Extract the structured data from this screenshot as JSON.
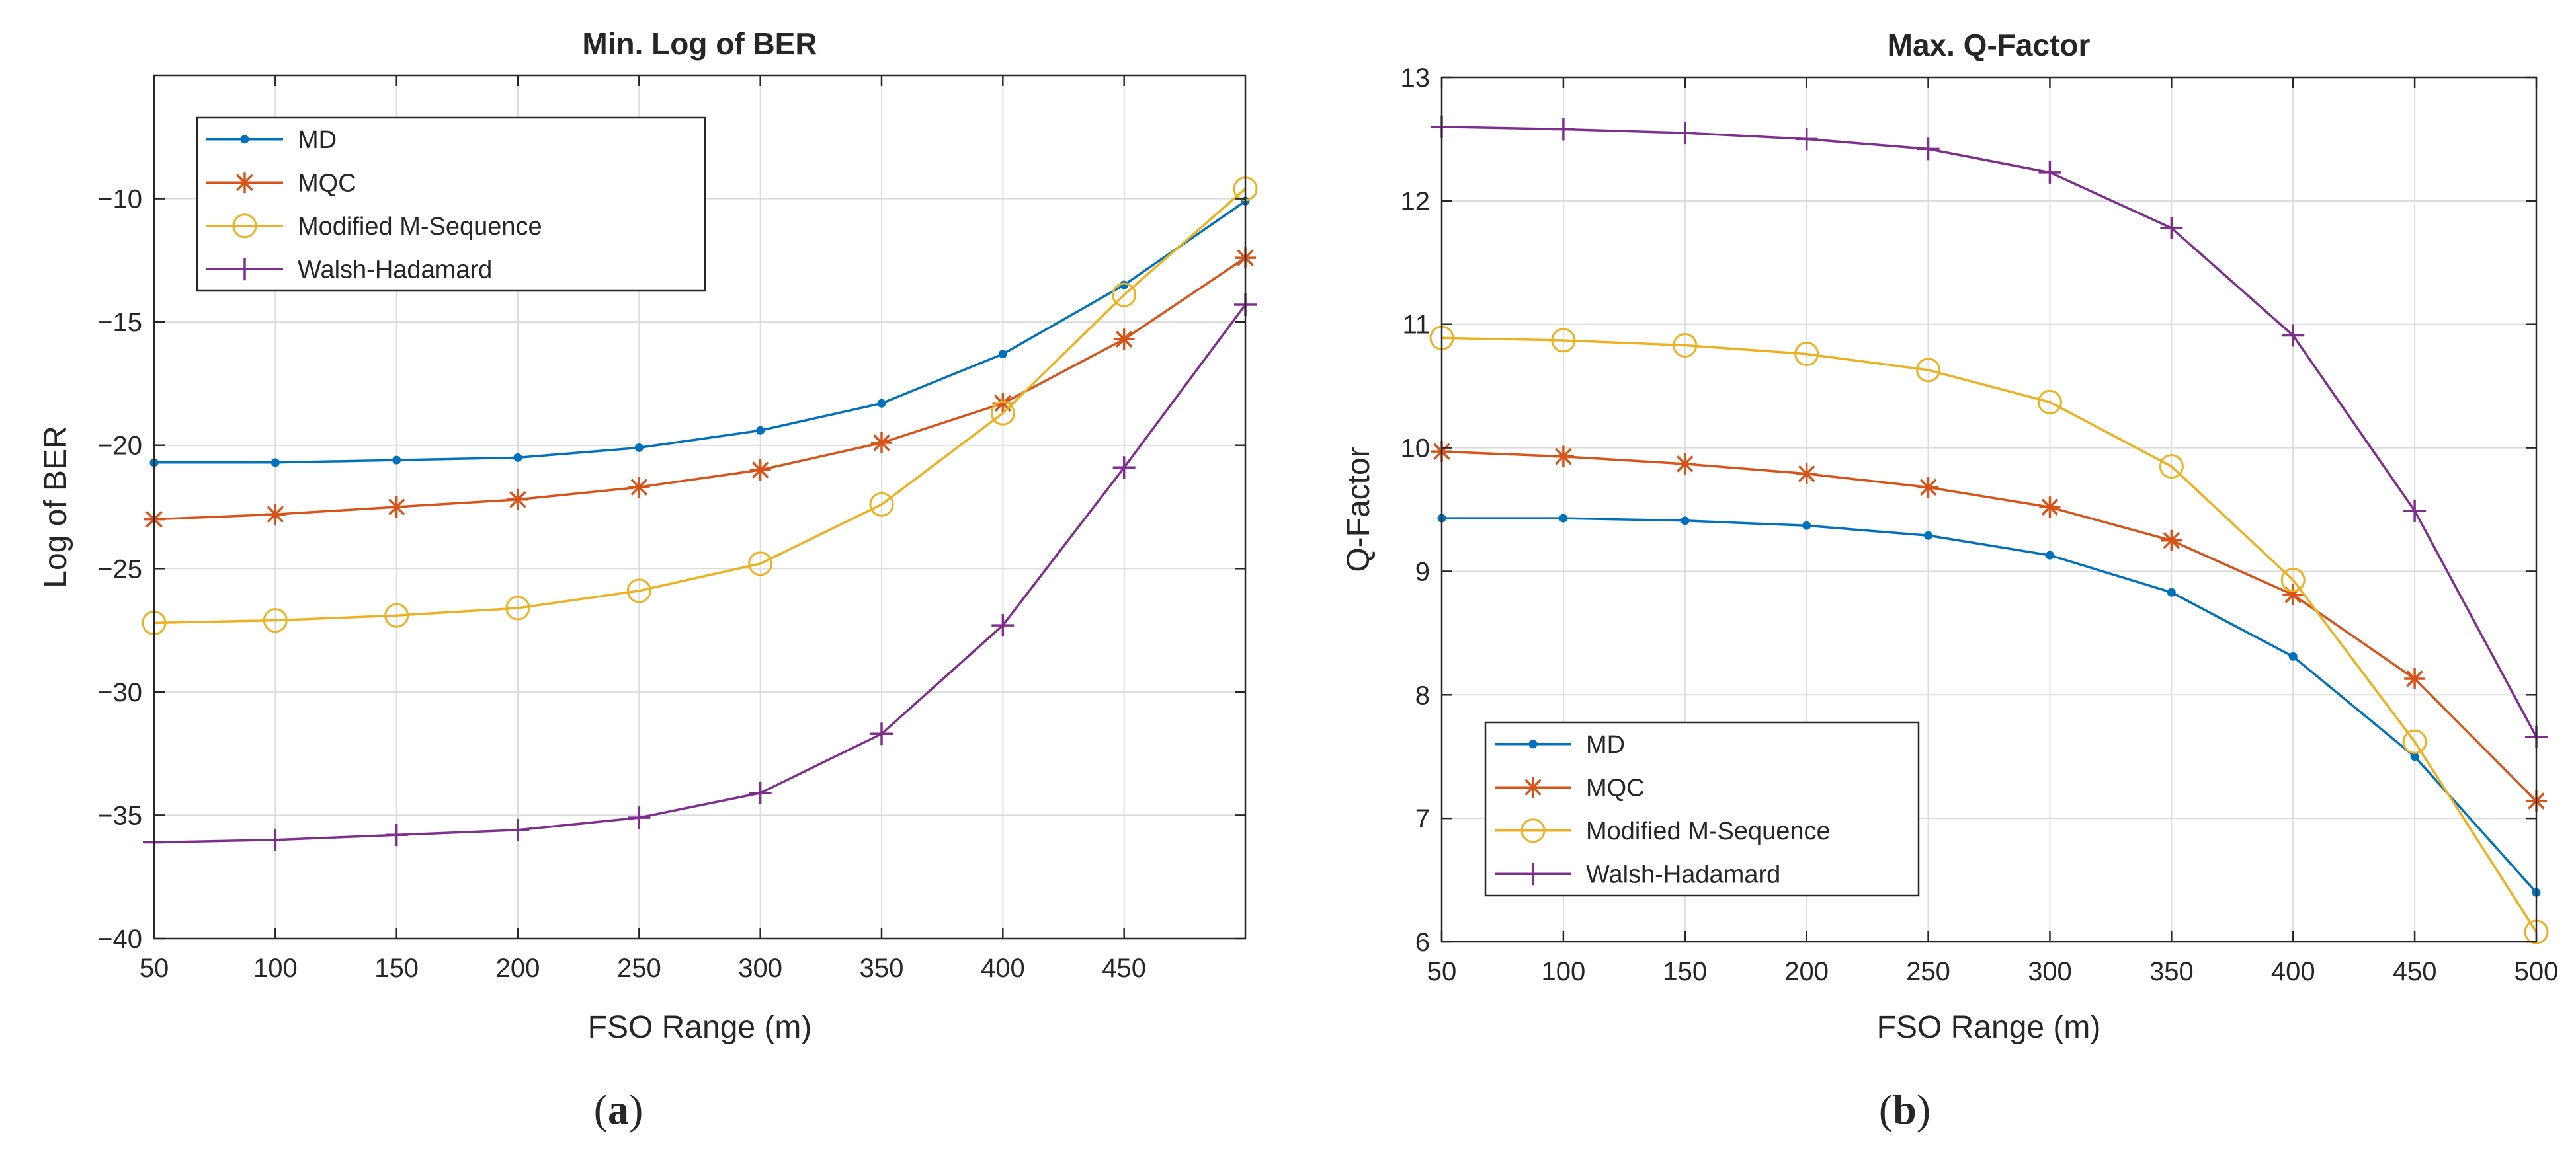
{
  "chart_data": [
    {
      "type": "line",
      "panel_label": "(a)",
      "panel_letter": "a",
      "title": "Min. Log of BER",
      "xlabel": "FSO Range (m)",
      "ylabel": "Log of BER",
      "x": [
        50,
        100,
        150,
        200,
        250,
        300,
        350,
        400,
        450,
        500
      ],
      "xlim": [
        50,
        500
      ],
      "ylim": [
        -40,
        -5
      ],
      "xticks": [
        "50",
        "100",
        "150",
        "200",
        "250",
        "300",
        "350",
        "400",
        "450"
      ],
      "xtick_values": [
        50,
        100,
        150,
        200,
        250,
        300,
        350,
        400,
        450
      ],
      "yticks": [
        "−10",
        "−15",
        "−20",
        "−25",
        "−30",
        "−35",
        "−40"
      ],
      "ytick_values": [
        -10,
        -15,
        -20,
        -25,
        -30,
        -35,
        -40
      ],
      "grid": true,
      "legend_position": "top-left",
      "series": [
        {
          "name": "MD",
          "color": "#0072BD",
          "marker": "dot",
          "values": [
            -20.7,
            -20.7,
            -20.6,
            -20.5,
            -20.1,
            -19.4,
            -18.3,
            -16.3,
            -13.5,
            -10.1
          ]
        },
        {
          "name": "MQC",
          "color": "#D95319",
          "marker": "star",
          "values": [
            -23.0,
            -22.8,
            -22.5,
            -22.2,
            -21.7,
            -21.0,
            -19.9,
            -18.3,
            -15.7,
            -12.4
          ]
        },
        {
          "name": "Modified M-Sequence",
          "color": "#EDB120",
          "marker": "circle",
          "values": [
            -27.2,
            -27.1,
            -26.9,
            -26.6,
            -25.9,
            -24.8,
            -22.4,
            -18.7,
            -13.9,
            -9.6
          ]
        },
        {
          "name": "Walsh-Hadamard",
          "color": "#7E2F8E",
          "marker": "plus",
          "values": [
            -36.1,
            -36.0,
            -35.8,
            -35.6,
            -35.1,
            -34.1,
            -31.7,
            -27.3,
            -20.9,
            -14.3
          ]
        }
      ]
    },
    {
      "type": "line",
      "panel_label": "(b)",
      "panel_letter": "b",
      "title": "Max. Q-Factor",
      "xlabel": "FSO Range (m)",
      "ylabel": "Q-Factor",
      "x": [
        50,
        100,
        150,
        200,
        250,
        300,
        350,
        400,
        450,
        500
      ],
      "xlim": [
        50,
        500
      ],
      "ylim": [
        6,
        13
      ],
      "xticks": [
        "50",
        "100",
        "150",
        "200",
        "250",
        "300",
        "350",
        "400",
        "450",
        "500"
      ],
      "xtick_values": [
        50,
        100,
        150,
        200,
        250,
        300,
        350,
        400,
        450,
        500
      ],
      "yticks": [
        "13",
        "12",
        "11",
        "10",
        "9",
        "8",
        "7",
        "6"
      ],
      "ytick_values": [
        13,
        12,
        11,
        10,
        9,
        8,
        7,
        6
      ],
      "grid": true,
      "legend_position": "bottom-left",
      "series": [
        {
          "name": "MD",
          "color": "#0072BD",
          "marker": "dot",
          "values": [
            9.43,
            9.43,
            9.41,
            9.37,
            9.29,
            9.13,
            8.83,
            8.31,
            7.5,
            6.4
          ]
        },
        {
          "name": "MQC",
          "color": "#D95319",
          "marker": "star",
          "values": [
            9.97,
            9.93,
            9.87,
            9.79,
            9.68,
            9.52,
            9.25,
            8.81,
            8.13,
            7.14
          ]
        },
        {
          "name": "Modified M-Sequence",
          "color": "#EDB120",
          "marker": "circle",
          "values": [
            10.89,
            10.87,
            10.83,
            10.76,
            10.63,
            10.37,
            9.85,
            8.93,
            7.62,
            6.08
          ]
        },
        {
          "name": "Walsh-Hadamard",
          "color": "#7E2F8E",
          "marker": "plus",
          "values": [
            12.6,
            12.58,
            12.55,
            12.5,
            12.42,
            12.23,
            11.78,
            10.91,
            9.49,
            7.66
          ]
        }
      ]
    }
  ]
}
